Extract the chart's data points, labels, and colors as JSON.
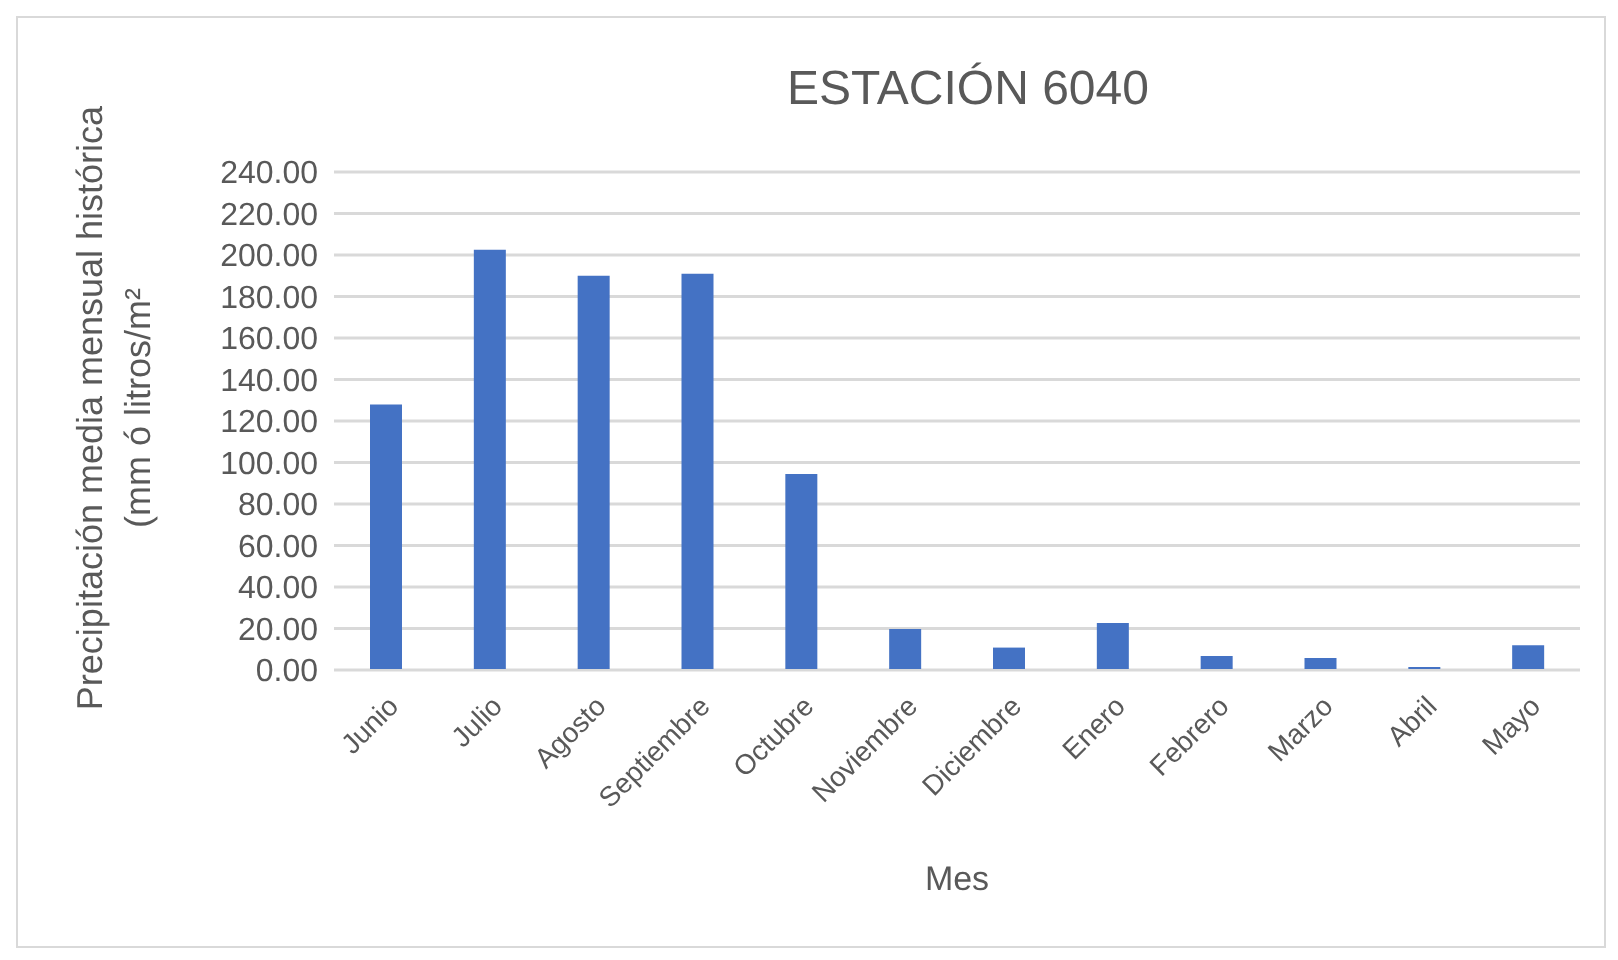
{
  "chart_data": {
    "type": "bar",
    "title": "ESTACIÓN 6040",
    "xlabel": "Mes",
    "ylabel": "Precipitación media mensual histórica (mm ó litros/m²",
    "categories": [
      "Junio",
      "Julio",
      "Agosto",
      "Septiembre",
      "Octubre",
      "Noviembre",
      "Diciembre",
      "Enero",
      "Febrero",
      "Marzo",
      "Abril",
      "Mayo"
    ],
    "values": [
      128,
      202.5,
      190,
      191,
      94.5,
      19.7,
      10.8,
      22.7,
      6.8,
      5.8,
      1.4,
      11.9
    ],
    "color": "#4472c4",
    "ylim": [
      0,
      240
    ],
    "yticks": [
      {
        "value": 0,
        "label": "0.00"
      },
      {
        "value": 20,
        "label": "20.00"
      },
      {
        "value": 40,
        "label": "40.00"
      },
      {
        "value": 60,
        "label": "60.00"
      },
      {
        "value": 80,
        "label": "80.00"
      },
      {
        "value": 100,
        "label": "100.00"
      },
      {
        "value": 120,
        "label": "120.00"
      },
      {
        "value": 140,
        "label": "140.00"
      },
      {
        "value": 160,
        "label": "160.00"
      },
      {
        "value": 180,
        "label": "180.00"
      },
      {
        "value": 200,
        "label": "200.00"
      },
      {
        "value": 220,
        "label": "220.00"
      },
      {
        "value": 240,
        "label": "240.00"
      }
    ],
    "grid": "y"
  }
}
